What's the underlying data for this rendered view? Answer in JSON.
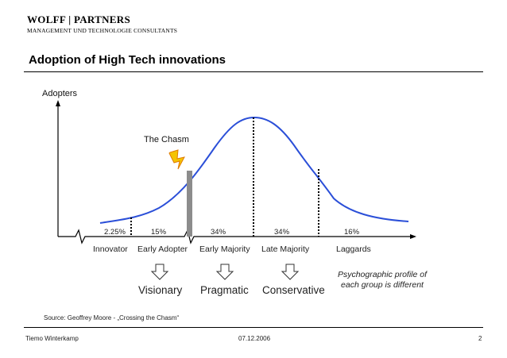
{
  "header": {
    "logo_main": "WOLFF | PARTNERS",
    "logo_sub": "MANAGEMENT UND TECHNOLOGIE CONSULTANTS",
    "title": "Adoption of High Tech innovations"
  },
  "diagram": {
    "y_axis_label": "Adopters",
    "chasm_label": "The Chasm",
    "percentages": [
      "2.25%",
      "15%",
      "34%",
      "34%",
      "16%"
    ],
    "groups": [
      "Innovator",
      "Early Adopter",
      "Early Majority",
      "Late Majority",
      "Laggards"
    ],
    "psychographics": [
      "Visionary",
      "Pragmatic",
      "Conservative"
    ],
    "note": "Psychographic profile of each group is different",
    "colors": {
      "curve": "#2b4fd8",
      "chasm_bar": "#8c8c8c",
      "lightning": "#f5c400"
    }
  },
  "source": "Source: Geoffrey Moore - „Crossing the Chasm“",
  "footer": {
    "author": "Tiemo Winterkamp",
    "date": "07.12.2006",
    "page": "2"
  }
}
